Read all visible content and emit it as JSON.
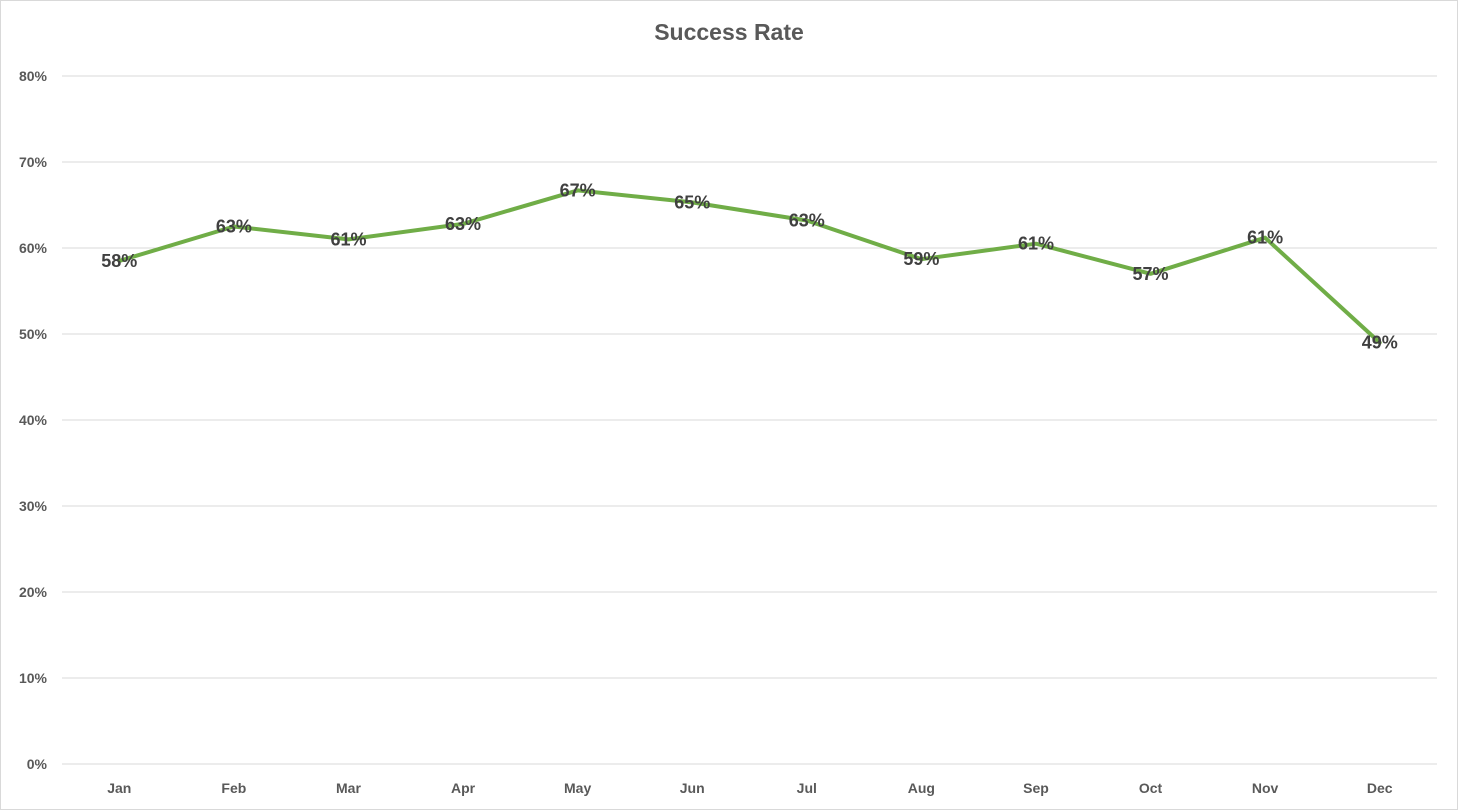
{
  "chart_data": {
    "type": "line",
    "title": "Success Rate",
    "xlabel": "",
    "ylabel": "",
    "categories": [
      "Jan",
      "Feb",
      "Mar",
      "Apr",
      "May",
      "Jun",
      "Jul",
      "Aug",
      "Sep",
      "Oct",
      "Nov",
      "Dec"
    ],
    "series": [
      {
        "values": [
          0.585,
          0.625,
          0.61,
          0.628,
          0.667,
          0.653,
          0.632,
          0.587,
          0.605,
          0.57,
          0.612,
          0.49
        ],
        "labels": [
          "58%",
          "63%",
          "61%",
          "63%",
          "67%",
          "65%",
          "63%",
          "59%",
          "61%",
          "57%",
          "61%",
          "49%"
        ],
        "color": "#70ad47"
      }
    ],
    "ylim": [
      0,
      0.8
    ],
    "yticks": [
      0,
      0.1,
      0.2,
      0.3,
      0.4,
      0.5,
      0.6,
      0.7,
      0.8
    ],
    "ytick_labels": [
      "0%",
      "10%",
      "20%",
      "30%",
      "40%",
      "50%",
      "60%",
      "70%",
      "80%"
    ],
    "grid": true,
    "legend": "none",
    "colors": {
      "line": "#70ad47",
      "grid": "#d9d9d9",
      "text": "#595959",
      "label": "#404040"
    }
  }
}
